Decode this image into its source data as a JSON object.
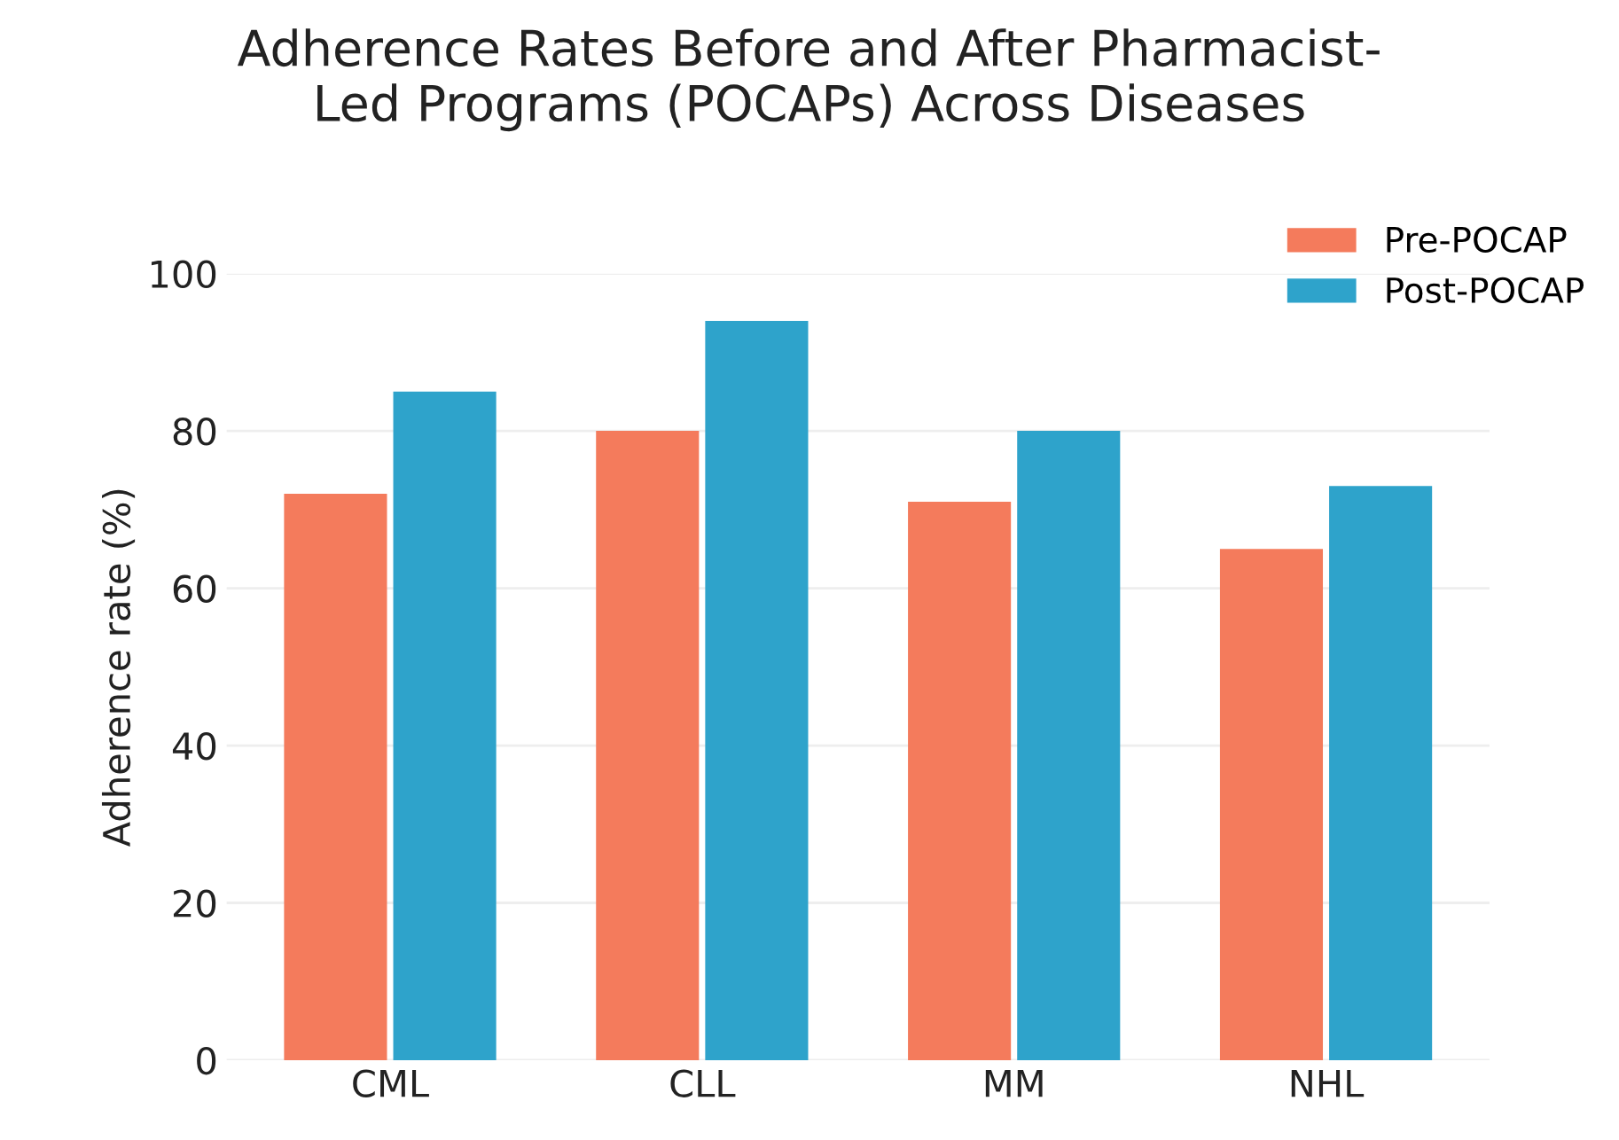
{
  "chart_data": {
    "type": "bar",
    "title": "Adherence Rates Before and After Pharmacist-\nLed Programs (POCAPs) Across Diseases",
    "ylabel": "Adherence rate (%)",
    "categories": [
      "CML",
      "CLL",
      "MM",
      "NHL"
    ],
    "series": [
      {
        "name": "Pre-POCAP",
        "color": "#f47b5c",
        "values": [
          72,
          80,
          71,
          65
        ]
      },
      {
        "name": "Post-POCAP",
        "color": "#2ea3cb",
        "values": [
          85,
          94,
          80,
          73
        ]
      }
    ],
    "ylim": [
      0,
      100
    ],
    "yticks": [
      0,
      20,
      40,
      60,
      80,
      100
    ],
    "grid": "y",
    "legend": "top right"
  }
}
